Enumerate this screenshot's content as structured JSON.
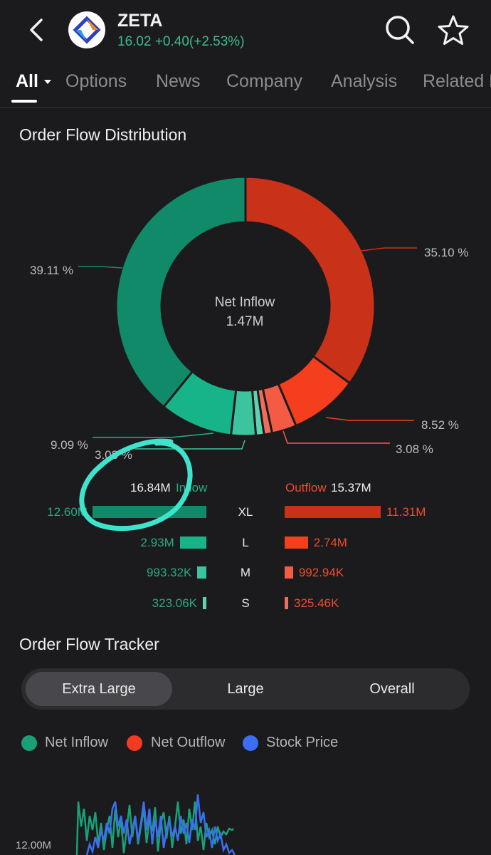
{
  "header": {
    "ticker": "ZETA",
    "quote": "16.02 +0.40(+2.53%)",
    "icons": [
      "back-arrow-icon",
      "search-icon",
      "star-icon"
    ]
  },
  "tabs": [
    {
      "label": "All",
      "active": true
    },
    {
      "label": "Options"
    },
    {
      "label": "News"
    },
    {
      "label": "Company"
    },
    {
      "label": "Analysis"
    },
    {
      "label": "Related E"
    }
  ],
  "order_flow_distribution": {
    "title": "Order Flow Distribution",
    "center_label": "Net Inflow",
    "center_value": "1.47M",
    "slices": [
      {
        "label": "35.10 %",
        "value": 35.1,
        "color": "#c93119",
        "side": "outflow",
        "size": "XL"
      },
      {
        "label": "8.52 %",
        "value": 8.52,
        "color": "#f53e1e",
        "side": "outflow",
        "size": "L"
      },
      {
        "label": "3.08 %",
        "value": 3.08,
        "color": "#f45b45",
        "side": "outflow",
        "size": "M"
      },
      {
        "label": "",
        "value": 1.01,
        "color": "#ef6d5b",
        "side": "outflow",
        "size": "S"
      },
      {
        "label": "",
        "value": 1.01,
        "color": "#61d2b1",
        "side": "inflow",
        "size": "S"
      },
      {
        "label": "3.08 %",
        "value": 3.08,
        "color": "#3bc49d",
        "side": "inflow",
        "size": "M"
      },
      {
        "label": "9.09 %",
        "value": 9.09,
        "color": "#17b489",
        "side": "inflow",
        "size": "L"
      },
      {
        "label": "39.11 %",
        "value": 39.11,
        "color": "#118a69",
        "side": "inflow",
        "size": "XL"
      }
    ],
    "inflow_total": "16.84M",
    "inflow_label": "Inflow",
    "outflow_label": "Outflow",
    "outflow_total": "15.37M",
    "rows": [
      {
        "size": "XL",
        "inflow": "12.60M",
        "outflow": "11.31M",
        "inflow_value": 12.6,
        "outflow_value": 11.31
      },
      {
        "size": "L",
        "inflow": "2.93M",
        "outflow": "2.74M",
        "inflow_value": 2.93,
        "outflow_value": 2.74
      },
      {
        "size": "M",
        "inflow": "993.32K",
        "outflow": "992.94K",
        "inflow_value": 0.99332,
        "outflow_value": 0.99294
      },
      {
        "size": "S",
        "inflow": "323.06K",
        "outflow": "325.46K",
        "inflow_value": 0.32306,
        "outflow_value": 0.32546
      }
    ],
    "annotation": "hand-drawn-circle-highlight"
  },
  "order_flow_tracker": {
    "title": "Order Flow Tracker",
    "segments": [
      {
        "label": "Extra Large",
        "active": true
      },
      {
        "label": "Large"
      },
      {
        "label": "Overall"
      }
    ],
    "legend": [
      {
        "label": "Net Inflow",
        "color": "#19a077"
      },
      {
        "label": "Net Outflow",
        "color": "#f23b20"
      },
      {
        "label": "Stock Price",
        "color": "#3a6ff0"
      }
    ],
    "y_tick_label": "12.00M"
  },
  "colors": {
    "background": "#1b1b1d",
    "inflow": "#17b489",
    "outflow": "#c93119",
    "price_up": "#3dba8c",
    "annotation": "#3fe3cc"
  }
}
